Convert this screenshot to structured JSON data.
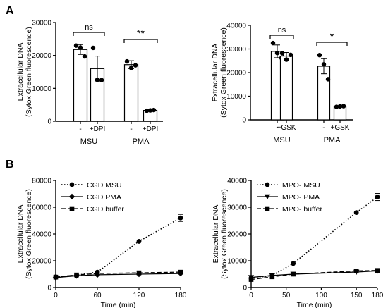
{
  "panel_labels": [
    "A",
    "B"
  ],
  "chart_data": [
    {
      "type": "bar",
      "ylabel": "Extracellular DNA",
      "ylabel2": "(Sytox Green fluorescence)",
      "ylim": [
        0,
        30000
      ],
      "yticks": [
        0,
        10000,
        20000,
        30000
      ],
      "categories": [
        "-",
        "+DPI",
        "-",
        "+DPI"
      ],
      "groups": [
        "MSU",
        "PMA"
      ],
      "values": [
        21800,
        16000,
        17200,
        3300
      ],
      "errors": [
        1500,
        3800,
        1200,
        250
      ],
      "points": [
        [
          23000,
          19700,
          22400
        ],
        [
          22300,
          12500,
          12600
        ],
        [
          18200,
          17000,
          16200
        ],
        [
          3200,
          3300,
          3400
        ]
      ],
      "significance": [
        {
          "label": "ns",
          "bars": [
            0,
            1
          ]
        },
        {
          "label": "**",
          "bars": [
            2,
            3
          ]
        }
      ]
    },
    {
      "type": "bar",
      "ylabel": "Extracellular DNA",
      "ylabel2": "(Sytox Green fluorescence)",
      "ylim": [
        0,
        40000
      ],
      "yticks": [
        0,
        10000,
        20000,
        30000,
        40000
      ],
      "categories": [
        "-",
        "+GSK",
        "-",
        "+GSK"
      ],
      "groups": [
        "MSU",
        "PMA"
      ],
      "values": [
        29000,
        27000,
        22700,
        5700
      ],
      "errors": [
        2700,
        1500,
        3200,
        200
      ],
      "points": [
        [
          32500,
          26200,
          28300
        ],
        [
          28200,
          27500,
          25500
        ],
        [
          27400,
          17200,
          23500
        ],
        [
          5500,
          5700,
          5800
        ]
      ],
      "significance": [
        {
          "label": "ns",
          "bars": [
            0,
            1
          ]
        },
        {
          "label": "*",
          "bars": [
            2,
            3
          ]
        }
      ]
    },
    {
      "type": "line",
      "xlabel": "Time (min)",
      "ylabel": "Extracellular DNA",
      "ylabel2": "(Sytox Green fluorescence)",
      "xlim": [
        0,
        180
      ],
      "ylim": [
        0,
        80000
      ],
      "xticks": [
        0,
        60,
        120,
        180
      ],
      "yticks": [
        0,
        20000,
        40000,
        60000,
        80000
      ],
      "legend_position": "top-left",
      "series": [
        {
          "name": "CGD MSU",
          "x": [
            0,
            30,
            60,
            120,
            180
          ],
          "values": [
            8000,
            9200,
            11500,
            34500,
            52000
          ],
          "style": "dotted",
          "marker": "circle"
        },
        {
          "name": "CGD PMA",
          "x": [
            0,
            30,
            60,
            120,
            180
          ],
          "values": [
            7500,
            8800,
            9500,
            10000,
            10500
          ],
          "style": "solid",
          "marker": "diamond"
        },
        {
          "name": "CGD buffer",
          "x": [
            0,
            30,
            60,
            120,
            180
          ],
          "values": [
            7800,
            9400,
            10500,
            11000,
            11500
          ],
          "style": "dashed",
          "marker": "square"
        }
      ]
    },
    {
      "type": "line",
      "xlabel": "Time (min)",
      "ylabel": "Extracellular DNA",
      "ylabel2": "(Sytox Green fluorescence)",
      "xlim": [
        0,
        180
      ],
      "ylim": [
        0,
        40000
      ],
      "xticks": [
        0,
        50,
        100,
        150
      ],
      "xtick_extra": 180,
      "yticks": [
        0,
        10000,
        20000,
        30000,
        40000
      ],
      "legend_position": "top-left",
      "series": [
        {
          "name": "MPO- MSU",
          "x": [
            0,
            30,
            60,
            150,
            180
          ],
          "values": [
            3500,
            4500,
            9000,
            28000,
            33800
          ],
          "style": "dotted",
          "marker": "circle"
        },
        {
          "name": "MPO- PMA",
          "x": [
            0,
            30,
            60,
            150,
            180
          ],
          "values": [
            3800,
            4500,
            5000,
            5800,
            6200
          ],
          "style": "solid",
          "marker": "triangle-down"
        },
        {
          "name": "MPO- buffer",
          "x": [
            0,
            30,
            60,
            150,
            180
          ],
          "values": [
            3000,
            4000,
            5000,
            6200,
            6400
          ],
          "style": "dashed",
          "marker": "square"
        }
      ]
    }
  ]
}
